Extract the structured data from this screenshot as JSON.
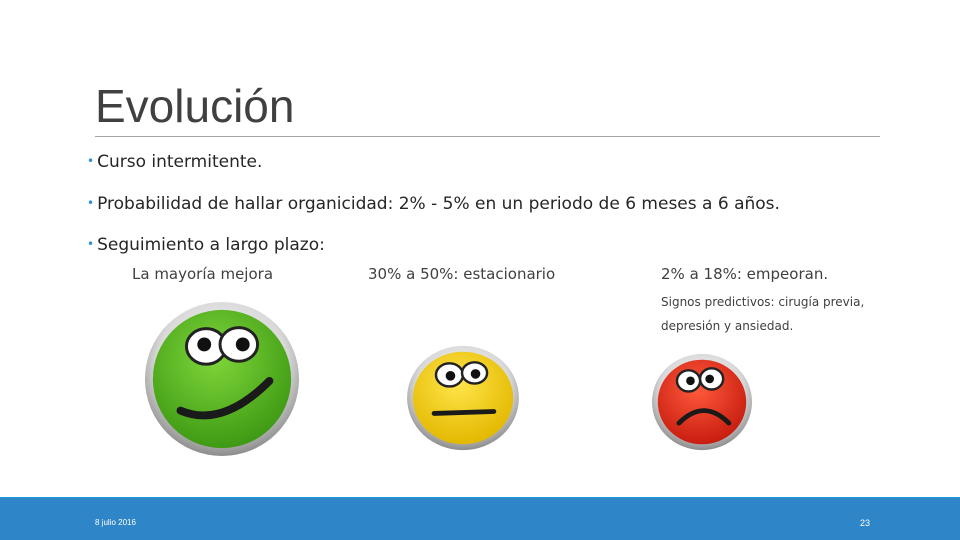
{
  "slide": {
    "title": "Evolución",
    "bullets": [
      "Curso intermitente.",
      "Probabilidad de hallar organicidad: 2% - 5% en un periodo de 6 meses a 6 años.",
      "Seguimiento a largo plazo:"
    ],
    "outcomes": [
      {
        "label": "La mayoría mejora",
        "face": "happy-face-icon",
        "color": "#5cb82a"
      },
      {
        "label": "30% a 50%: estacionario",
        "face": "neutral-face-icon",
        "color": "#f5d21a"
      },
      {
        "label": "2% a 18%: empeoran.",
        "face": "sad-face-icon",
        "color": "#e8331f"
      }
    ],
    "note_lines": [
      "Signos predictivos: cirugía previa,",
      "depresión y ansiedad."
    ]
  },
  "footer": {
    "date": "8 julio 2016",
    "page": "23",
    "bar_color": "#2e86c9"
  }
}
